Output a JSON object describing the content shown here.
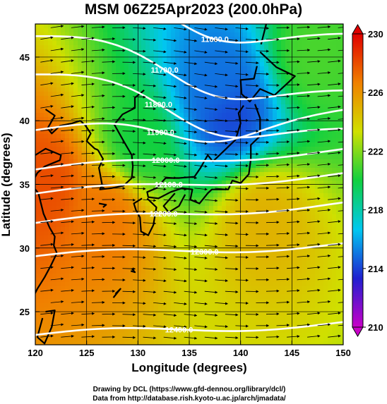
{
  "chart_data": {
    "type": "heatmap",
    "title": "MSM 06Z25Apr2023 (200.0hPa)",
    "xlabel": "Longitude (degrees)",
    "ylabel": "Latitude  (degrees)",
    "xlim": [
      120,
      150
    ],
    "ylim": [
      22.4,
      47.6
    ],
    "xticks": [
      120,
      125,
      130,
      135,
      140,
      145,
      150
    ],
    "yticks": [
      25,
      30,
      35,
      40,
      45
    ],
    "colorbar": {
      "min": 210,
      "max": 230,
      "ticks": [
        210,
        214,
        218,
        222,
        226,
        230
      ],
      "colors": [
        "#c800c8",
        "#2020d0",
        "#00c8f0",
        "#10d040",
        "#d0e000",
        "#f08000",
        "#e00000"
      ]
    },
    "temperature_centers": [
      {
        "lon": 139,
        "lat": 40.5,
        "value": 214
      },
      {
        "lon": 138,
        "lat": 42.5,
        "value": 215
      },
      {
        "lon": 121,
        "lat": 35,
        "value": 228
      },
      {
        "lon": 127,
        "lat": 33,
        "value": 227
      },
      {
        "lon": 142,
        "lat": 32.5,
        "value": 225
      },
      {
        "lon": 130,
        "lat": 38,
        "value": 220
      },
      {
        "lon": 147,
        "lat": 45,
        "value": 221
      }
    ],
    "height_contours": [
      {
        "label": "11600.0",
        "label_lon": 137.5,
        "label_lat": 46.4
      },
      {
        "label": "11700.0",
        "label_lon": 132.6,
        "label_lat": 44.0
      },
      {
        "label": "11800.0",
        "label_lon": 132.0,
        "label_lat": 41.3
      },
      {
        "label": "11900.0",
        "label_lon": 132.2,
        "label_lat": 39.1
      },
      {
        "label": "12000.0",
        "label_lon": 132.7,
        "label_lat": 36.9
      },
      {
        "label": "12100.0",
        "label_lon": 133.0,
        "label_lat": 35.0
      },
      {
        "label": "12200.0",
        "label_lon": 132.5,
        "label_lat": 32.7
      },
      {
        "label": "12300.0",
        "label_lon": 136.5,
        "label_lat": 29.7
      },
      {
        "label": "12400.0",
        "label_lon": 134.0,
        "label_lat": 23.6
      }
    ],
    "wind": "westerly vectors"
  },
  "footer": {
    "line1": "Drawing by DCL (https://www.gfd-dennou.org/library/dcl/)",
    "line2": "Data from http://database.rish.kyoto-u.ac.jp/arch/jmadata/"
  }
}
